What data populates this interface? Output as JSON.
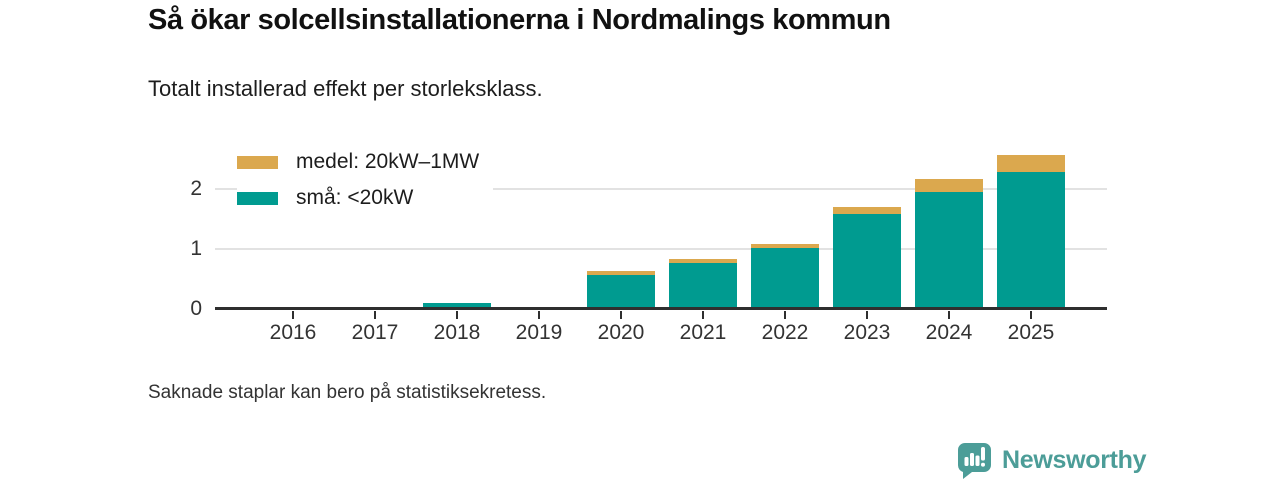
{
  "title": "Så ökar solcellsinstallationerna i Nordmalings kommun",
  "subtitle": "Totalt installerad effekt per storleksklass.",
  "footnote": "Saknade staplar kan bero på statistiksekretess.",
  "branding": {
    "name": "Newsworthy",
    "color": "#4C9D98"
  },
  "chart_data": {
    "type": "bar",
    "stacked": true,
    "title": "Så ökar solcellsinstallationerna i Nordmalings kommun",
    "subtitle": "Totalt installerad effekt per storleksklass.",
    "categories": [
      "2016",
      "2017",
      "2018",
      "2019",
      "2020",
      "2021",
      "2022",
      "2023",
      "2024",
      "2025"
    ],
    "series": [
      {
        "name": "medel: 20kW–1MW",
        "color": "#DBA84E",
        "values": [
          0,
          0,
          0,
          0,
          0.06,
          0.07,
          0.07,
          0.12,
          0.22,
          0.29
        ]
      },
      {
        "name": "små: <20kW",
        "color": "#009B90",
        "values": [
          0,
          0,
          0.1,
          0,
          0.57,
          0.77,
          1.02,
          1.58,
          1.95,
          2.28
        ]
      }
    ],
    "xlabel": "",
    "ylabel": "",
    "yticks": [
      0,
      1,
      2
    ],
    "ylim": [
      0,
      2.85
    ],
    "grid": "horizontal",
    "legend_position": "top-left",
    "grid_color": "#e2e2e2",
    "axis_color": "#2f2f2f",
    "text_color": "#333333"
  }
}
